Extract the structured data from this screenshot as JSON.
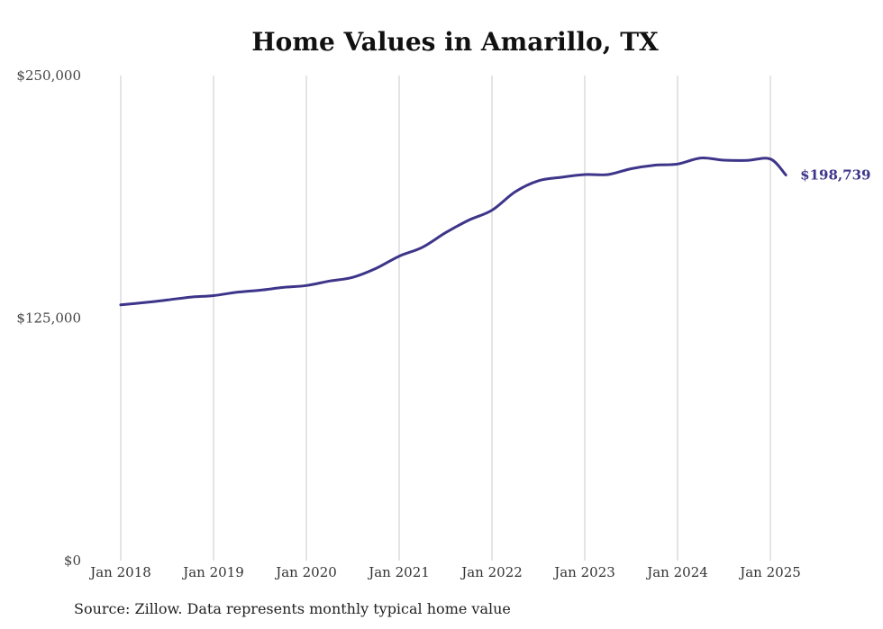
{
  "chart_data": {
    "type": "line",
    "title": "Home Values in Amarillo, TX",
    "xlabel": "",
    "ylabel": "",
    "ylim": [
      0,
      250000
    ],
    "y_ticks": [
      "$0",
      "$125,000",
      "$250,000"
    ],
    "x_ticks": [
      "Jan 2018",
      "Jan 2019",
      "Jan 2020",
      "Jan 2021",
      "Jan 2022",
      "Jan 2023",
      "Jan 2024",
      "Jan 2025"
    ],
    "grid": "vertical",
    "line_color": "#3d3589",
    "end_label": "$198,739",
    "series": [
      {
        "x": [
          "2018-01",
          "2018-04",
          "2018-07",
          "2018-10",
          "2019-01",
          "2019-04",
          "2019-07",
          "2019-10",
          "2020-01",
          "2020-04",
          "2020-07",
          "2020-10",
          "2021-01",
          "2021-04",
          "2021-07",
          "2021-10",
          "2022-01",
          "2022-04",
          "2022-07",
          "2022-10",
          "2023-01",
          "2023-04",
          "2023-07",
          "2023-10",
          "2024-01",
          "2024-04",
          "2024-07",
          "2024-10",
          "2025-01",
          "2025-03"
        ],
        "y": [
          131800,
          133000,
          134300,
          135800,
          136600,
          138300,
          139400,
          140800,
          141800,
          144100,
          146000,
          150600,
          156900,
          161500,
          169000,
          175500,
          180600,
          190100,
          195800,
          197600,
          199000,
          199000,
          202000,
          203800,
          204400,
          207500,
          206400,
          206300,
          207000,
          198739
        ]
      }
    ]
  },
  "source_note": "Source: Zillow. Data represents monthly typical home value"
}
